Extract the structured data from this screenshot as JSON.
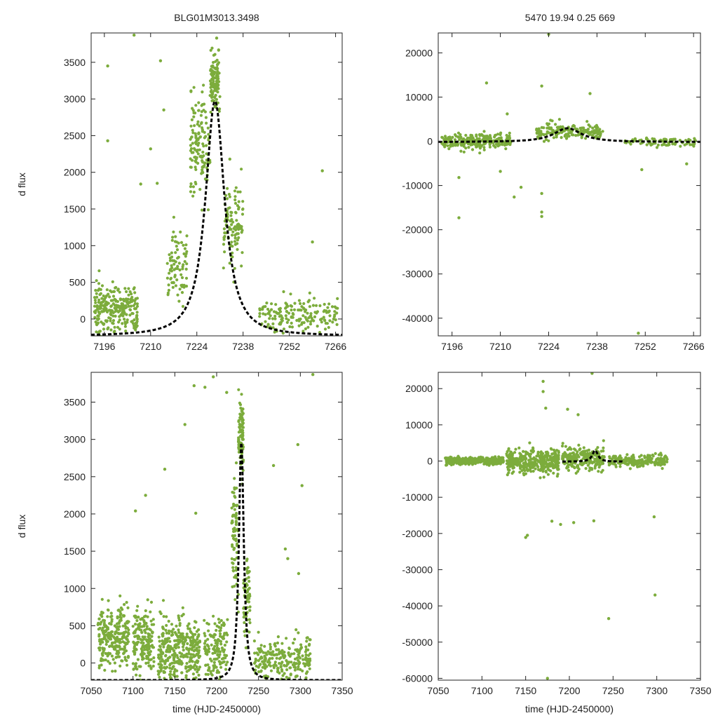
{
  "colors": {
    "points": "#7cac3c",
    "model": "#000000",
    "axis": "#222222"
  },
  "header": {
    "title_left": "BLG01M3013.3498",
    "title_right": "5470  19.94  0.25  669"
  },
  "chart_data": [
    {
      "id": "top-left",
      "type": "scatter",
      "description_role": "zoomed light curve",
      "ylabel": "d flux",
      "xlabel": "",
      "xlim": [
        7192,
        7268
      ],
      "ylim": [
        -230,
        3900
      ],
      "xticks": [
        7196,
        7210,
        7224,
        7238,
        7252,
        7266
      ],
      "yticks": [
        0,
        500,
        1000,
        1500,
        2000,
        2500,
        3000,
        3500
      ],
      "model": {
        "shape": "peak",
        "t0": 7229.5,
        "base": -230,
        "amp": 3200,
        "width": 3.6,
        "tail": 0.9
      },
      "series": [
        {
          "name": "photometry",
          "clusters": [
            {
              "x": [
                7193,
                7206
              ],
              "y_center": 150,
              "y_spread": 280,
              "n": 260
            },
            {
              "x": [
                7215,
                7221
              ],
              "y_center": 700,
              "y_spread": 420,
              "n": 80
            },
            {
              "x": [
                7222,
                7228
              ],
              "y_center": 2400,
              "y_spread": 600,
              "n": 140
            },
            {
              "x": [
                7228,
                7231
              ],
              "y_center": 3200,
              "y_spread": 350,
              "n": 110
            },
            {
              "x": [
                7232,
                7238
              ],
              "y_center": 1300,
              "y_spread": 500,
              "n": 110
            },
            {
              "x": [
                7243,
                7267
              ],
              "y_center": 50,
              "y_spread": 200,
              "n": 170
            }
          ],
          "outliers": [
            [
              7197,
              3450
            ],
            [
              7205,
              3870
            ],
            [
              7213,
              3520
            ],
            [
              7197,
              2430
            ],
            [
              7210,
              2320
            ],
            [
              7214,
              2850
            ],
            [
              7212,
              1850
            ],
            [
              7207,
              1840
            ],
            [
              7262,
              2020
            ],
            [
              7259,
              1050
            ],
            [
              7234,
              2180
            ],
            [
              7230,
              3830
            ]
          ]
        }
      ]
    },
    {
      "id": "top-right",
      "type": "scatter",
      "description_role": "zoomed light curve (full range)",
      "ylabel": "",
      "xlabel": "",
      "xlim": [
        7192,
        7268
      ],
      "ylim": [
        -44000,
        24500
      ],
      "xticks": [
        7196,
        7210,
        7224,
        7238,
        7252,
        7266
      ],
      "yticks": [
        -40000,
        -30000,
        -20000,
        -10000,
        0,
        10000,
        20000
      ],
      "model": {
        "shape": "peak",
        "t0": 7229.5,
        "base": -150,
        "amp": 3100,
        "width": 5.0,
        "tail": 0.8
      },
      "series": [
        {
          "name": "photometry",
          "clusters": [
            {
              "x": [
                7193,
                7213
              ],
              "y_center": 0,
              "y_spread": 1600,
              "n": 240
            },
            {
              "x": [
                7220,
                7240
              ],
              "y_center": 2300,
              "y_spread": 1800,
              "n": 170
            },
            {
              "x": [
                7246,
                7267
              ],
              "y_center": -200,
              "y_spread": 900,
              "n": 90
            }
          ],
          "outliers": [
            [
              7198,
              -17300
            ],
            [
              7206,
              13200
            ],
            [
              7212,
              6200
            ],
            [
              7214,
              -12600
            ],
            [
              7216,
              -10400
            ],
            [
              7222,
              12500
            ],
            [
              7222,
              -11800
            ],
            [
              7222,
              -16000
            ],
            [
              7222,
              -17000
            ],
            [
              7224,
              24200
            ],
            [
              7236,
              10800
            ],
            [
              7250,
              -43400
            ],
            [
              7251,
              -6400
            ],
            [
              7264,
              -5100
            ],
            [
              7198,
              -8200
            ],
            [
              7210,
              -6800
            ]
          ]
        }
      ]
    },
    {
      "id": "bottom-left",
      "type": "scatter",
      "description_role": "full light curve",
      "ylabel": "d flux",
      "xlabel": "time (HJD-2450000)",
      "xlim": [
        7050,
        7350
      ],
      "ylim": [
        -230,
        3900
      ],
      "xticks": [
        7050,
        7100,
        7150,
        7200,
        7250,
        7300,
        7350
      ],
      "yticks": [
        0,
        500,
        1000,
        1500,
        2000,
        2500,
        3000,
        3500
      ],
      "model": {
        "shape": "peak",
        "t0": 7229.5,
        "base": -230,
        "amp": 3200,
        "width": 3.6,
        "tail": 0.9
      },
      "series": [
        {
          "name": "photometry",
          "clusters": [
            {
              "x": [
                7058,
                7095
              ],
              "y_center": 350,
              "y_spread": 380,
              "n": 260
            },
            {
              "x": [
                7100,
                7125
              ],
              "y_center": 300,
              "y_spread": 420,
              "n": 180
            },
            {
              "x": [
                7130,
                7180
              ],
              "y_center": 150,
              "y_spread": 420,
              "n": 360
            },
            {
              "x": [
                7185,
                7213
              ],
              "y_center": 150,
              "y_spread": 380,
              "n": 140
            },
            {
              "x": [
                7218,
                7226
              ],
              "y_center": 1700,
              "y_spread": 800,
              "n": 80
            },
            {
              "x": [
                7226,
                7232
              ],
              "y_center": 3100,
              "y_spread": 450,
              "n": 100
            },
            {
              "x": [
                7232,
                7240
              ],
              "y_center": 900,
              "y_spread": 600,
              "n": 60
            },
            {
              "x": [
                7245,
                7312
              ],
              "y_center": 50,
              "y_spread": 260,
              "n": 230
            }
          ],
          "outliers": [
            [
              7103,
              2040
            ],
            [
              7115,
              2250
            ],
            [
              7138,
              2600
            ],
            [
              7162,
              3200
            ],
            [
              7173,
              3720
            ],
            [
              7186,
              3700
            ],
            [
              7196,
              3840
            ],
            [
              7212,
              3630
            ],
            [
              7268,
              2650
            ],
            [
              7297,
              2930
            ],
            [
              7302,
              2380
            ],
            [
              7282,
              1530
            ],
            [
              7285,
              1400
            ],
            [
              7298,
              1200
            ],
            [
              7315,
              3870
            ],
            [
              7175,
              2010
            ]
          ]
        }
      ]
    },
    {
      "id": "bottom-right",
      "type": "scatter",
      "description_role": "full light curve (full range)",
      "ylabel": "",
      "xlabel": "time (HJD-2450000)",
      "xlim": [
        7050,
        7350
      ],
      "ylim": [
        -60500,
        24500
      ],
      "xticks": [
        7050,
        7100,
        7150,
        7200,
        7250,
        7300,
        7350
      ],
      "yticks": [
        -60000,
        -50000,
        -40000,
        -30000,
        -20000,
        -10000,
        0,
        10000,
        20000
      ],
      "model": {
        "shape": "peak",
        "t0": 7229.5,
        "base": -150,
        "amp": 3100,
        "width": 4.0,
        "tail": 0.8,
        "x_from": 7192,
        "x_to": 7262
      },
      "series": [
        {
          "name": "photometry",
          "clusters": [
            {
              "x": [
                7058,
                7125
              ],
              "y_center": 0,
              "y_spread": 900,
              "n": 360
            },
            {
              "x": [
                7128,
                7188
              ],
              "y_center": 0,
              "y_spread": 2800,
              "n": 340
            },
            {
              "x": [
                7192,
                7240
              ],
              "y_center": 500,
              "y_spread": 3000,
              "n": 220
            },
            {
              "x": [
                7245,
                7312
              ],
              "y_center": 0,
              "y_spread": 1400,
              "n": 200
            }
          ],
          "outliers": [
            [
              7170,
              22000
            ],
            [
              7170,
              19200
            ],
            [
              7173,
              14600
            ],
            [
              7152,
              -20500
            ],
            [
              7150,
              -21100
            ],
            [
              7175,
              -60000
            ],
            [
              7198,
              14300
            ],
            [
              7210,
              12800
            ],
            [
              7226,
              24200
            ],
            [
              7245,
              -43500
            ],
            [
              7298,
              -37000
            ],
            [
              7297,
              -15400
            ],
            [
              7205,
              -17000
            ],
            [
              7190,
              -17500
            ],
            [
              7180,
              -16600
            ],
            [
              7228,
              -16500
            ]
          ]
        }
      ]
    }
  ]
}
